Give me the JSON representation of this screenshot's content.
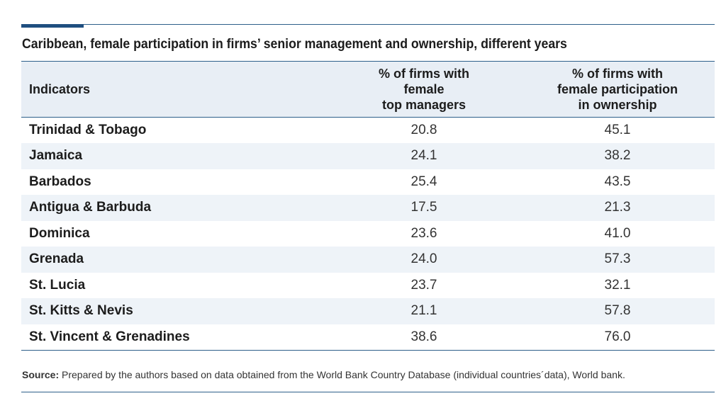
{
  "title": "Caribbean, female participation in firms’ senior management and ownership, different years",
  "table": {
    "headers": {
      "indicators": "Indicators",
      "col1": [
        "% of firms with",
        "female",
        "top managers"
      ],
      "col2": [
        "% of firms with",
        "female participation",
        "in ownership"
      ]
    },
    "rows": [
      {
        "country": "Trinidad & Tobago",
        "top_managers": "20.8",
        "ownership": "45.1"
      },
      {
        "country": "Jamaica",
        "top_managers": "24.1",
        "ownership": "38.2"
      },
      {
        "country": "Barbados",
        "top_managers": "25.4",
        "ownership": "43.5"
      },
      {
        "country": "Antigua & Barbuda",
        "top_managers": "17.5",
        "ownership": "21.3"
      },
      {
        "country": "Dominica",
        "top_managers": "23.6",
        "ownership": "41.0"
      },
      {
        "country": "Grenada",
        "top_managers": "24.0",
        "ownership": "57.3"
      },
      {
        "country": "St. Lucia",
        "top_managers": "23.7",
        "ownership": "32.1"
      },
      {
        "country": "St. Kitts & Nevis",
        "top_managers": "21.1",
        "ownership": "57.8"
      },
      {
        "country": "St. Vincent & Grenadines",
        "top_managers": "38.6",
        "ownership": "76.0"
      }
    ]
  },
  "source": {
    "label": "Source:",
    "text": "Prepared by the authors based on data obtained from the World Bank Country Database (individual countries´data), World bank."
  },
  "colors": {
    "accent": "#1f4f80",
    "rule": "#2d5f8a",
    "header_bg": "#e8eef5",
    "stripe_bg": "#eef3f8"
  }
}
